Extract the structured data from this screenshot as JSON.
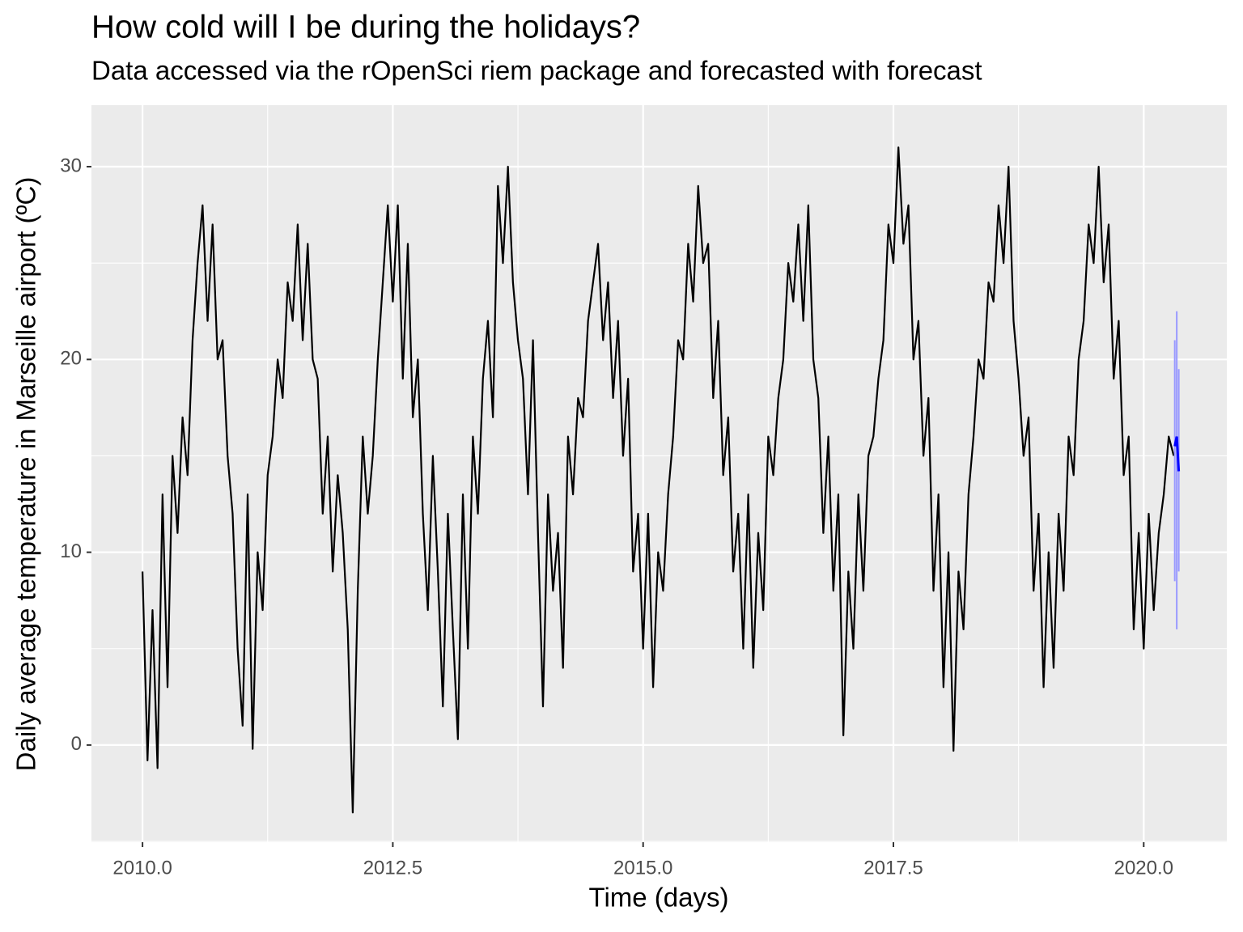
{
  "chart_data": {
    "type": "line",
    "title": "How cold will I be during the holidays?",
    "subtitle": "Data accessed via the rOpenSci riem package and forecasted with forecast",
    "x_label": "Time (days)",
    "y_label": "Daily average temperature in Marseille airport (ºC)",
    "x": [
      2010,
      2010.05,
      2010.1,
      2010.15,
      2010.2,
      2010.25,
      2010.3,
      2010.35,
      2010.4,
      2010.45,
      2010.5,
      2010.55,
      2010.6,
      2010.65,
      2010.7,
      2010.75,
      2010.8,
      2010.85,
      2010.9,
      2010.95,
      2011,
      2011.05,
      2011.1,
      2011.15,
      2011.2,
      2011.25,
      2011.3,
      2011.35,
      2011.4,
      2011.45,
      2011.5,
      2011.55,
      2011.6,
      2011.65,
      2011.7,
      2011.75,
      2011.8,
      2011.85,
      2011.9,
      2011.95,
      2012,
      2012.05,
      2012.1,
      2012.15,
      2012.2,
      2012.25,
      2012.3,
      2012.35,
      2012.4,
      2012.45,
      2012.5,
      2012.55,
      2012.6,
      2012.65,
      2012.7,
      2012.75,
      2012.8,
      2012.85,
      2012.9,
      2012.95,
      2013,
      2013.05,
      2013.1,
      2013.15,
      2013.2,
      2013.25,
      2013.3,
      2013.35,
      2013.4,
      2013.45,
      2013.5,
      2013.55,
      2013.6,
      2013.65,
      2013.7,
      2013.75,
      2013.8,
      2013.85,
      2013.9,
      2013.95,
      2014,
      2014.05,
      2014.1,
      2014.15,
      2014.2,
      2014.25,
      2014.3,
      2014.35,
      2014.4,
      2014.45,
      2014.5,
      2014.55,
      2014.6,
      2014.65,
      2014.7,
      2014.75,
      2014.8,
      2014.85,
      2014.9,
      2014.95,
      2015,
      2015.05,
      2015.1,
      2015.15,
      2015.2,
      2015.25,
      2015.3,
      2015.35,
      2015.4,
      2015.45,
      2015.5,
      2015.55,
      2015.6,
      2015.65,
      2015.7,
      2015.75,
      2015.8,
      2015.85,
      2015.9,
      2015.95,
      2016,
      2016.05,
      2016.1,
      2016.15,
      2016.2,
      2016.25,
      2016.3,
      2016.35,
      2016.4,
      2016.45,
      2016.5,
      2016.55,
      2016.6,
      2016.65,
      2016.7,
      2016.75,
      2016.8,
      2016.85,
      2016.9,
      2016.95,
      2017,
      2017.05,
      2017.1,
      2017.15,
      2017.2,
      2017.25,
      2017.3,
      2017.35,
      2017.4,
      2017.45,
      2017.5,
      2017.55,
      2017.6,
      2017.65,
      2017.7,
      2017.75,
      2017.8,
      2017.85,
      2017.9,
      2017.95,
      2018,
      2018.05,
      2018.1,
      2018.15,
      2018.2,
      2018.25,
      2018.3,
      2018.35,
      2018.4,
      2018.45,
      2018.5,
      2018.55,
      2018.6,
      2018.65,
      2018.7,
      2018.75,
      2018.8,
      2018.85,
      2018.9,
      2018.95,
      2019,
      2019.05,
      2019.1,
      2019.15,
      2019.2,
      2019.25,
      2019.3,
      2019.35,
      2019.4,
      2019.45,
      2019.5,
      2019.55,
      2019.6,
      2019.65,
      2019.7,
      2019.75,
      2019.8,
      2019.85,
      2019.9,
      2019.95,
      2020,
      2020.05,
      2020.1,
      2020.15,
      2020.2,
      2020.25,
      2020.3
    ],
    "series": [
      {
        "color": "#000000",
        "values": [
          9,
          -0.8,
          7,
          -1.2,
          13,
          3,
          15,
          11,
          17,
          14,
          21,
          25,
          28,
          22,
          27,
          20,
          21,
          15,
          12,
          5,
          1,
          13,
          -0.2,
          10,
          7,
          14,
          16,
          20,
          18,
          24,
          22,
          27,
          21,
          26,
          20,
          19,
          12,
          16,
          9,
          14,
          11,
          6,
          -3.5,
          8,
          16,
          12,
          15,
          20,
          24,
          28,
          23,
          28,
          19,
          26,
          17,
          20,
          12,
          7,
          15,
          9,
          2,
          12,
          6,
          0.3,
          13,
          5,
          16,
          12,
          19,
          22,
          17,
          29,
          25,
          30,
          24,
          21,
          19,
          13,
          21,
          11,
          2,
          13,
          8,
          11,
          4,
          16,
          13,
          18,
          17,
          22,
          24,
          26,
          21,
          24,
          18,
          22,
          15,
          19,
          9,
          12,
          5,
          12,
          3,
          10,
          8,
          13,
          16,
          21,
          20,
          26,
          23,
          29,
          25,
          26,
          18,
          22,
          14,
          17,
          9,
          12,
          5,
          13,
          4,
          11,
          7,
          16,
          14,
          18,
          20,
          25,
          23,
          27,
          22,
          28,
          20,
          18,
          11,
          16,
          8,
          13,
          0.5,
          9,
          5,
          13,
          8,
          15,
          16,
          19,
          21,
          27,
          25,
          31,
          26,
          28,
          20,
          22,
          15,
          18,
          8,
          13,
          3,
          10,
          -0.3,
          9,
          6,
          13,
          16,
          20,
          19,
          24,
          23,
          28,
          25,
          30,
          22,
          19,
          15,
          17,
          8,
          12,
          3,
          10,
          4,
          12,
          8,
          16,
          14,
          20,
          22,
          27,
          25,
          30,
          24,
          27,
          19,
          22,
          14,
          16,
          6,
          11,
          5,
          12,
          7,
          11,
          13,
          16,
          15
        ]
      }
    ],
    "forecast": {
      "color": "#0000ff",
      "band_color": "#9999ff",
      "x": [
        2020.31,
        2020.33,
        2020.35
      ],
      "values": [
        15.5,
        16,
        14.2
      ],
      "lower": [
        8.5,
        6,
        9
      ],
      "upper": [
        21,
        22.5,
        19.5
      ]
    },
    "xlim": [
      2009.49,
      2020.83
    ],
    "ylim": [
      -5.04,
      33.19
    ],
    "xticks": [
      {
        "value": 2010,
        "label": "2010.0"
      },
      2012.5,
      {
        "value": 2015,
        "label": "2015.0"
      },
      2017.5,
      {
        "value": 2020,
        "label": "2020.0"
      }
    ],
    "yticks": [
      0,
      10,
      20,
      30
    ],
    "grid": true
  }
}
